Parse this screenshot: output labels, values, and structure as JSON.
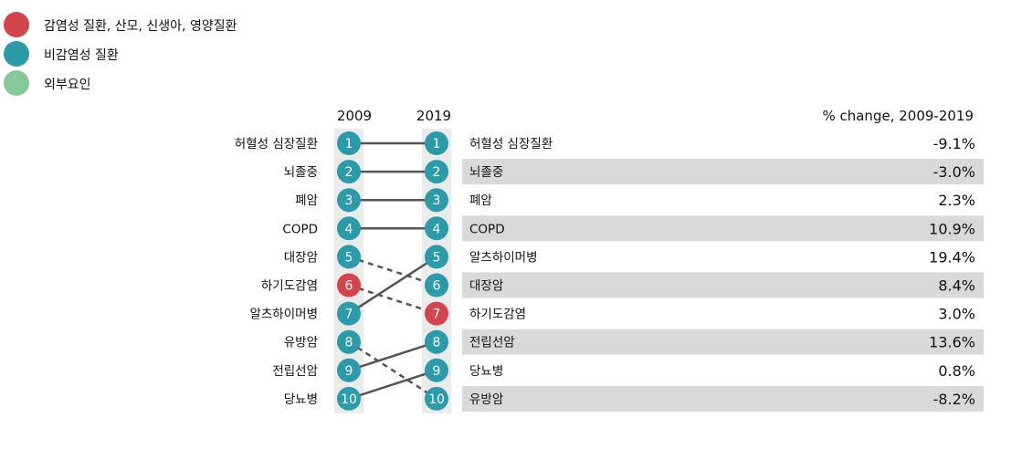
{
  "legend": [
    {
      "label": "감염성 질환, 산모, 신생아, 영양질환",
      "color": "#d4444d"
    },
    {
      "label": "비감염성 질환",
      "color": "#2b9aa9"
    },
    {
      "label": "외부요인",
      "color": "#86c998"
    }
  ],
  "chart_data": {
    "type": "table",
    "col_headers": [
      "2009",
      "2019"
    ],
    "change_header": "% change, 2009-2019",
    "categories": {
      "infectious": {
        "label": "감염성 질환, 산모, 신생아, 영양질환",
        "color": "#d4444d"
      },
      "noncommunicable": {
        "label": "비감염성 질환",
        "color": "#2b9aa9"
      },
      "external": {
        "label": "외부요인",
        "color": "#86c998"
      }
    },
    "causes": [
      {
        "name": "허혈성 심장질환",
        "rank2009": 1,
        "rank2019": 1,
        "category": "noncommunicable",
        "change": "-9.1%"
      },
      {
        "name": "뇌졸중",
        "rank2009": 2,
        "rank2019": 2,
        "category": "noncommunicable",
        "change": "-3.0%"
      },
      {
        "name": "폐암",
        "rank2009": 3,
        "rank2019": 3,
        "category": "noncommunicable",
        "change": "2.3%"
      },
      {
        "name": "COPD",
        "rank2009": 4,
        "rank2019": 4,
        "category": "noncommunicable",
        "change": "10.9%"
      },
      {
        "name": "대장암",
        "rank2009": 5,
        "rank2019": 6,
        "category": "noncommunicable",
        "change": "8.4%"
      },
      {
        "name": "하기도감염",
        "rank2009": 6,
        "rank2019": 7,
        "category": "infectious",
        "change": "3.0%"
      },
      {
        "name": "알츠하이머병",
        "rank2009": 7,
        "rank2019": 5,
        "category": "noncommunicable",
        "change": "19.4%"
      },
      {
        "name": "유방암",
        "rank2009": 8,
        "rank2019": 10,
        "category": "noncommunicable",
        "change": "-8.2%"
      },
      {
        "name": "전립선암",
        "rank2009": 9,
        "rank2019": 8,
        "category": "noncommunicable",
        "change": "13.6%"
      },
      {
        "name": "당뇨병",
        "rank2009": 10,
        "rank2019": 9,
        "category": "noncommunicable",
        "change": "0.8%"
      }
    ]
  }
}
